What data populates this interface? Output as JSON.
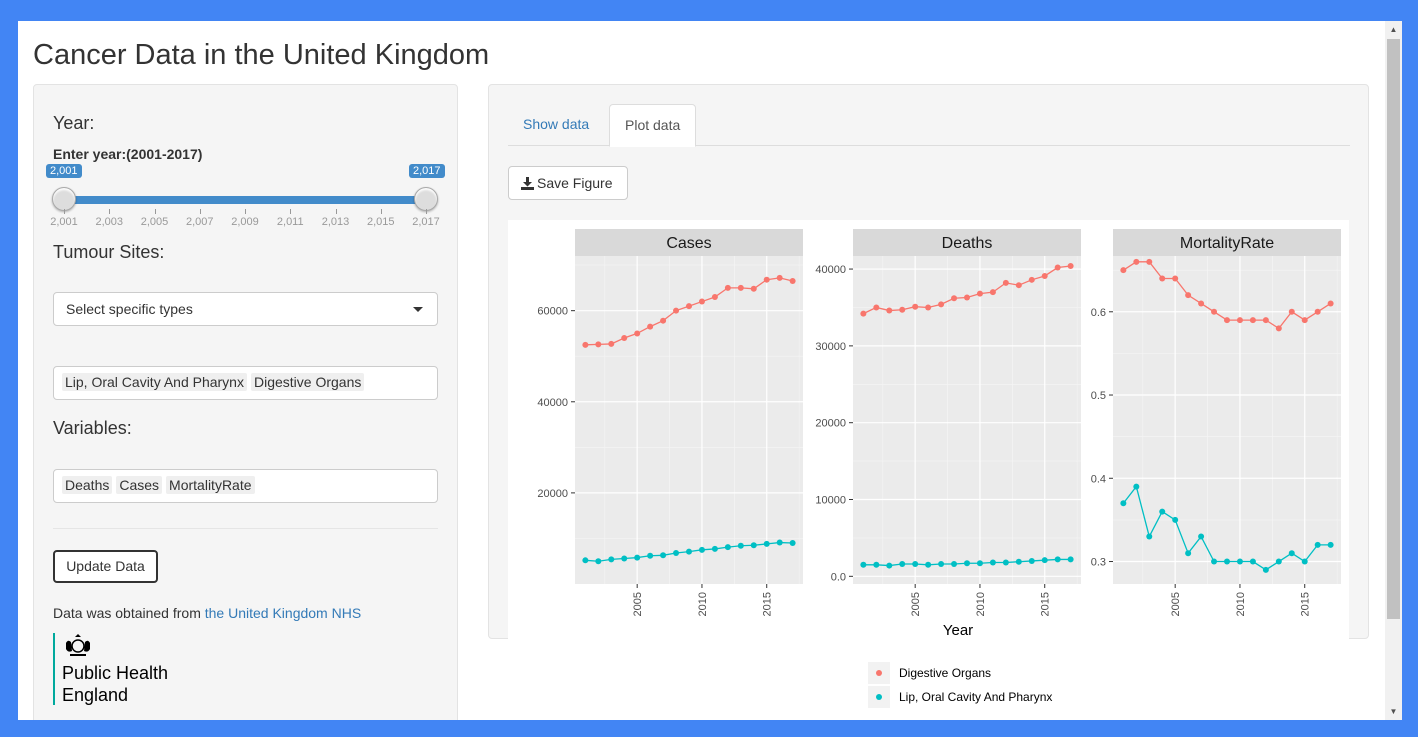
{
  "page": {
    "title": "Cancer Data in the United Kingdom"
  },
  "sidebar": {
    "year_label": "Year:",
    "year_sublabel": "Enter year:(2001-2017)",
    "slider": {
      "min": 2001,
      "max": 2017,
      "from": 2001,
      "to": 2017,
      "from_label": "2,001",
      "to_label": "2,017",
      "ticks": [
        "2,001",
        "2,003",
        "2,005",
        "2,007",
        "2,009",
        "2,011",
        "2,013",
        "2,015",
        "2,017"
      ]
    },
    "tumour_label": "Tumour Sites:",
    "tumour_select_placeholder": "Select specific types",
    "tumour_selected": [
      "Lip, Oral Cavity And Pharynx",
      "Digestive Organs"
    ],
    "variables_label": "Variables:",
    "variables_selected": [
      "Deaths",
      "Cases",
      "MortalityRate"
    ],
    "update_button": "Update Data",
    "source_prefix": "Data was obtained from ",
    "source_link": "the United Kingdom NHS",
    "logo": {
      "line1": "Public Health",
      "line2": "England",
      "crest_icon": "royal-crest-icon"
    }
  },
  "main": {
    "tabs": [
      {
        "label": "Show data",
        "active": false
      },
      {
        "label": "Plot data",
        "active": true
      }
    ],
    "save_button": "Save Figure"
  },
  "chart_data": {
    "type": "line",
    "xlabel": "Year",
    "x": [
      2001,
      2002,
      2003,
      2004,
      2005,
      2006,
      2007,
      2008,
      2009,
      2010,
      2011,
      2012,
      2013,
      2014,
      2015,
      2016,
      2017
    ],
    "x_ticks": [
      2005,
      2010,
      2015
    ],
    "legend": {
      "placement": "bottom"
    },
    "colors": {
      "Digestive Organs": "#f8766d",
      "Lip, Oral Cavity And Pharynx": "#00bfc4"
    },
    "panels": [
      {
        "title": "Cases",
        "ylim": [
          0,
          72000
        ],
        "y_ticks": [
          20000,
          40000,
          60000
        ],
        "series": [
          {
            "name": "Digestive Organs",
            "values": [
              52500,
              52600,
              52700,
              54000,
              55000,
              56500,
              57800,
              60000,
              61000,
              62000,
              63000,
              65000,
              65000,
              64800,
              66800,
              67200,
              66500
            ]
          },
          {
            "name": "Lip, Oral Cavity And Pharynx",
            "values": [
              5200,
              5000,
              5400,
              5600,
              5800,
              6200,
              6300,
              6800,
              7100,
              7500,
              7700,
              8100,
              8400,
              8500,
              8800,
              9100,
              9000
            ]
          }
        ]
      },
      {
        "title": "Deaths",
        "ylim": [
          -1000,
          41700
        ],
        "y_ticks": [
          0,
          10000,
          20000,
          30000,
          40000
        ],
        "series": [
          {
            "name": "Digestive Organs",
            "values": [
              34200,
              35000,
              34600,
              34700,
              35100,
              35000,
              35400,
              36200,
              36300,
              36800,
              37000,
              38200,
              37900,
              38600,
              39100,
              40200,
              40400
            ]
          },
          {
            "name": "Lip, Oral Cavity And Pharynx",
            "values": [
              1500,
              1500,
              1400,
              1600,
              1600,
              1500,
              1600,
              1600,
              1700,
              1700,
              1800,
              1800,
              1900,
              2000,
              2100,
              2200,
              2200
            ]
          }
        ]
      },
      {
        "title": "MortalityRate",
        "ylim": [
          0.273,
          0.667
        ],
        "y_ticks": [
          0.3,
          0.4,
          0.5,
          0.6
        ],
        "series": [
          {
            "name": "Digestive Organs",
            "values": [
              0.65,
              0.66,
              0.66,
              0.64,
              0.64,
              0.62,
              0.61,
              0.6,
              0.59,
              0.59,
              0.59,
              0.59,
              0.58,
              0.6,
              0.59,
              0.6,
              0.61
            ]
          },
          {
            "name": "Lip, Oral Cavity And Pharynx",
            "values": [
              0.37,
              0.39,
              0.33,
              0.36,
              0.35,
              0.31,
              0.33,
              0.3,
              0.3,
              0.3,
              0.3,
              0.29,
              0.3,
              0.31,
              0.3,
              0.32,
              0.32
            ]
          }
        ]
      }
    ]
  }
}
